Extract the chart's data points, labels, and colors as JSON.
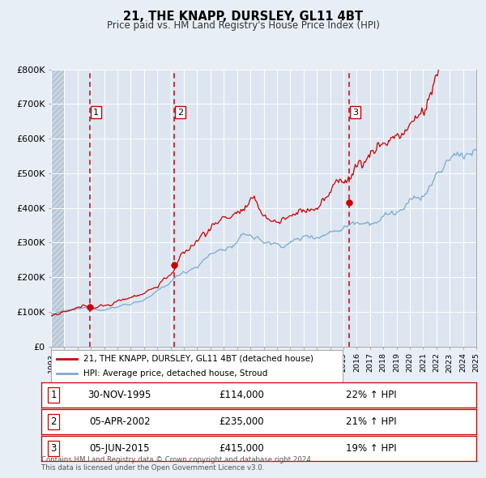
{
  "title": "21, THE KNAPP, DURSLEY, GL11 4BT",
  "subtitle": "Price paid vs. HM Land Registry's House Price Index (HPI)",
  "hpi_label": "HPI: Average price, detached house, Stroud",
  "property_label": "21, THE KNAPP, DURSLEY, GL11 4BT (detached house)",
  "x_start_year": 1993,
  "x_end_year": 2025,
  "y_min": 0,
  "y_max": 800000,
  "y_ticks": [
    0,
    100000,
    200000,
    300000,
    400000,
    500000,
    600000,
    700000,
    800000
  ],
  "y_tick_labels": [
    "£0",
    "£100K",
    "£200K",
    "£300K",
    "£400K",
    "£500K",
    "£600K",
    "£700K",
    "£800K"
  ],
  "sale_points": [
    {
      "label": "1",
      "year": 1995.917,
      "price": 114000,
      "date_str": "30-NOV-1995",
      "price_str": "£114,000",
      "hpi_pct": "22% ↑ HPI"
    },
    {
      "label": "2",
      "year": 2002.26,
      "price": 235000,
      "date_str": "05-APR-2002",
      "price_str": "£235,000",
      "hpi_pct": "21% ↑ HPI"
    },
    {
      "label": "3",
      "year": 2015.43,
      "price": 415000,
      "date_str": "05-JUN-2015",
      "price_str": "£415,000",
      "hpi_pct": "19% ↑ HPI"
    }
  ],
  "line_color_red": "#cc0000",
  "line_color_blue": "#7aaad0",
  "vline_color": "#cc0000",
  "bg_color": "#e8eef5",
  "plot_bg_color": "#dde6f0",
  "grid_color": "#ffffff",
  "footer_text": "Contains HM Land Registry data © Crown copyright and database right 2024.\nThis data is licensed under the Open Government Licence v3.0.",
  "sale_box_color": "#cc0000"
}
